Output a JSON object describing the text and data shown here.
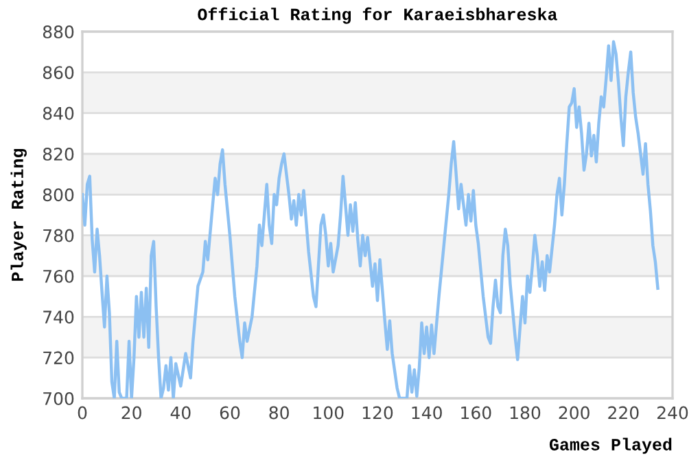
{
  "chart_data": {
    "type": "line",
    "title": "Official Rating for Karaeisbhareska",
    "xlabel": "Games Played",
    "ylabel": "Player Rating",
    "xlim": [
      0,
      240
    ],
    "xticks": [
      0,
      20,
      40,
      60,
      80,
      100,
      120,
      140,
      160,
      180,
      200,
      220,
      240
    ],
    "ylim": [
      700,
      880
    ],
    "yticks": [
      700,
      720,
      740,
      760,
      780,
      800,
      820,
      840,
      860,
      880
    ],
    "grid": "y",
    "marker": "none",
    "line_style": "solid",
    "series": [
      {
        "color": "#8cc0f2",
        "x": [
          0,
          1,
          2,
          3,
          4,
          5,
          6,
          7,
          8,
          9,
          10,
          11,
          12,
          13,
          14,
          15,
          16,
          18,
          19,
          20,
          21,
          22,
          23,
          24,
          25,
          26,
          27,
          28,
          29,
          30,
          31,
          32,
          33,
          34,
          35,
          36,
          37,
          38,
          40,
          42,
          44,
          45,
          47,
          49,
          50,
          51,
          53,
          54,
          55,
          56,
          57,
          58,
          60,
          62,
          64,
          65,
          66,
          67,
          69,
          71,
          72,
          73,
          74,
          75,
          76,
          77,
          78,
          79,
          80,
          81,
          82,
          83,
          84,
          85,
          86,
          87,
          88,
          89,
          90,
          92,
          94,
          95,
          96,
          97,
          98,
          99,
          100,
          101,
          102,
          104,
          105,
          106,
          107,
          108,
          109,
          110,
          111,
          112,
          113,
          114,
          115,
          116,
          118,
          119,
          120,
          121,
          123,
          124,
          125,
          126,
          128,
          129,
          132,
          133,
          134,
          135,
          136,
          137,
          138,
          139,
          140,
          141,
          142,
          143,
          145,
          147,
          149,
          150,
          151,
          152,
          153,
          154,
          155,
          156,
          157,
          158,
          159,
          160,
          161,
          163,
          165,
          166,
          167,
          168,
          169,
          170,
          171,
          172,
          173,
          174,
          176,
          177,
          178,
          179,
          180,
          181,
          182,
          183,
          184,
          185,
          186,
          187,
          188,
          189,
          190,
          192,
          193,
          194,
          195,
          196,
          197,
          198,
          199,
          200,
          201,
          202,
          203,
          204,
          205,
          206,
          207,
          208,
          209,
          210,
          211,
          212,
          213,
          214,
          215,
          216,
          217,
          218,
          219,
          220,
          221,
          222,
          223,
          224,
          225,
          226,
          227,
          228,
          229,
          230,
          231,
          232,
          233,
          234
        ],
        "values": [
          800,
          785,
          805,
          809,
          778,
          762,
          783,
          770,
          752,
          735,
          760,
          742,
          708,
          700,
          728,
          703,
          700,
          700,
          728,
          700,
          720,
          750,
          730,
          752,
          730,
          754,
          725,
          770,
          777,
          745,
          720,
          700,
          705,
          716,
          704,
          720,
          700,
          717,
          706,
          722,
          710,
          728,
          755,
          762,
          777,
          768,
          795,
          808,
          800,
          815,
          822,
          805,
          780,
          750,
          728,
          720,
          737,
          728,
          740,
          765,
          785,
          775,
          790,
          805,
          785,
          776,
          800,
          795,
          808,
          815,
          820,
          810,
          800,
          788,
          797,
          785,
          800,
          790,
          802,
          772,
          750,
          745,
          765,
          785,
          790,
          780,
          765,
          776,
          762,
          775,
          790,
          809,
          795,
          780,
          795,
          782,
          796,
          778,
          765,
          780,
          770,
          779,
          755,
          766,
          748,
          768,
          738,
          724,
          738,
          722,
          705,
          700,
          700,
          716,
          703,
          714,
          701,
          715,
          737,
          722,
          735,
          720,
          736,
          722,
          750,
          775,
          800,
          815,
          826,
          810,
          793,
          805,
          795,
          785,
          800,
          787,
          802,
          785,
          776,
          750,
          730,
          727,
          745,
          758,
          745,
          742,
          770,
          783,
          775,
          756,
          730,
          719,
          735,
          750,
          737,
          760,
          752,
          765,
          780,
          770,
          755,
          767,
          753,
          770,
          762,
          785,
          800,
          808,
          790,
          805,
          825,
          843,
          845,
          852,
          833,
          843,
          830,
          812,
          820,
          835,
          819,
          829,
          816,
          835,
          848,
          843,
          857,
          873,
          856,
          875,
          869,
          855,
          838,
          824,
          848,
          860,
          870,
          850,
          838,
          830,
          820,
          810,
          825,
          805,
          792,
          775,
          767,
          754
        ]
      }
    ]
  }
}
